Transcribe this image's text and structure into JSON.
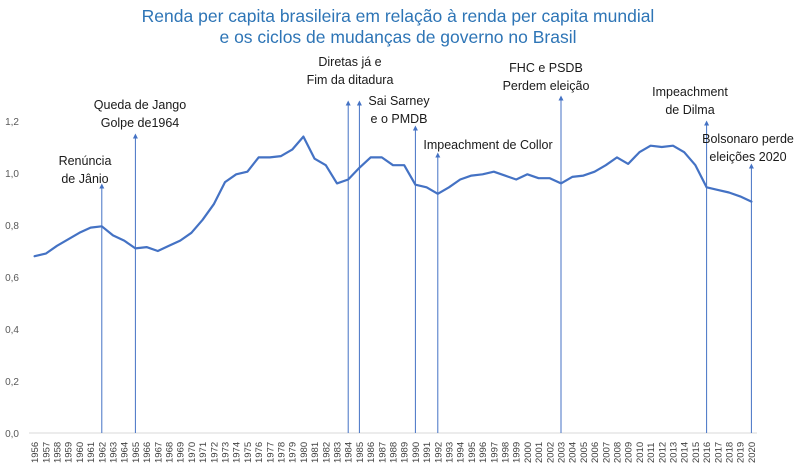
{
  "chart_data": {
    "type": "line",
    "title": "Renda per capita brasileira em relação à renda per capita mundial",
    "subtitle": "e os ciclos de mudanças de governo no Brasil",
    "xlabel": "",
    "ylabel": "",
    "ylim": [
      0,
      1.2
    ],
    "y_ticks": [
      "0,0",
      "0,2",
      "0,4",
      "0,6",
      "0,8",
      "1,0",
      "1,2"
    ],
    "grid": false,
    "legend": "none",
    "line_color": "#4472c4",
    "title_color": "#2e75b6",
    "x": [
      1956,
      1957,
      1958,
      1959,
      1960,
      1961,
      1962,
      1963,
      1964,
      1965,
      1966,
      1967,
      1968,
      1969,
      1970,
      1971,
      1972,
      1973,
      1974,
      1975,
      1976,
      1977,
      1978,
      1979,
      1980,
      1981,
      1982,
      1983,
      1984,
      1985,
      1986,
      1987,
      1988,
      1989,
      1990,
      1991,
      1992,
      1993,
      1994,
      1995,
      1996,
      1997,
      1998,
      1999,
      2000,
      2001,
      2002,
      2003,
      2004,
      2005,
      2006,
      2007,
      2008,
      2009,
      2010,
      2011,
      2012,
      2013,
      2014,
      2015,
      2016,
      2017,
      2018,
      2019,
      2020
    ],
    "values": [
      0.68,
      0.69,
      0.72,
      0.745,
      0.77,
      0.79,
      0.795,
      0.76,
      0.74,
      0.71,
      0.715,
      0.7,
      0.72,
      0.74,
      0.77,
      0.82,
      0.88,
      0.965,
      0.995,
      1.005,
      1.06,
      1.06,
      1.065,
      1.09,
      1.14,
      1.055,
      1.03,
      0.96,
      0.975,
      1.02,
      1.06,
      1.06,
      1.03,
      1.03,
      0.955,
      0.945,
      0.92,
      0.945,
      0.975,
      0.99,
      0.995,
      1.005,
      0.99,
      0.975,
      0.995,
      0.98,
      0.98,
      0.96,
      0.985,
      0.99,
      1.005,
      1.03,
      1.06,
      1.035,
      1.08,
      1.105,
      1.1,
      1.105,
      1.08,
      1.03,
      0.945,
      0.935,
      0.925,
      0.91,
      0.89
    ],
    "annotations": [
      {
        "year": 1962,
        "lines": [
          "Renúncia",
          "de Jânio"
        ]
      },
      {
        "year": 1965,
        "lines": [
          "Queda de Jango",
          "Golpe de1964"
        ]
      },
      {
        "year": 1984,
        "lines": [
          "Diretas já e",
          "Fim da ditadura"
        ]
      },
      {
        "year": 1985,
        "lines": []
      },
      {
        "year": 1990,
        "lines": [
          "Sai Sarney",
          "e o PMDB"
        ]
      },
      {
        "year": 1992,
        "lines": [
          "Impeachment de Collor"
        ]
      },
      {
        "year": 2003,
        "lines": [
          "FHC e PSDB",
          "Perdem eleição"
        ]
      },
      {
        "year": 2016,
        "lines": [
          "Impeachment",
          "de Dilma"
        ]
      },
      {
        "year": 2020,
        "lines": [
          "Bolsonaro perde",
          "eleições 2020"
        ]
      }
    ]
  }
}
